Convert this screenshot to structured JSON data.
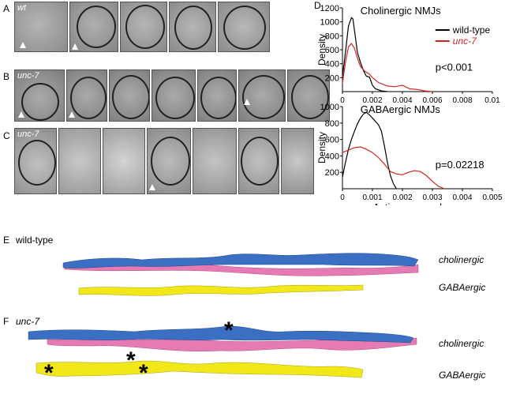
{
  "panels": {
    "A": {
      "letter": "A",
      "genotype": "wt"
    },
    "B": {
      "letter": "B",
      "genotype": "unc-7"
    },
    "C": {
      "letter": "C",
      "genotype": "unc-7"
    },
    "D": {
      "letter": "D"
    },
    "E": {
      "letter": "E",
      "genotype": "wild-type",
      "rows": [
        "cholinergic",
        "GABAergic"
      ]
    },
    "F": {
      "letter": "F",
      "genotype": "unc-7",
      "rows": [
        "cholinergic",
        "GABAergic"
      ],
      "asterisk": "*"
    }
  },
  "colors": {
    "wild_type": "#000000",
    "unc7": "#d0251f",
    "cholinergic_blue": "#3a6fc4",
    "cholinergic_pink": "#e67bb3",
    "gaba_yellow": "#f2e819"
  },
  "chart_data": [
    {
      "type": "line",
      "title": "Cholinergic NMJs",
      "ylabel": "Density",
      "xlabel": "",
      "xlim": [
        0,
        0.01
      ],
      "ylim": [
        0,
        1200
      ],
      "xticks": [
        "0",
        "0.002",
        "0.004",
        "0.006",
        "0.008",
        "0.01"
      ],
      "yticks": [
        "200",
        "400",
        "600",
        "800",
        "1000",
        "1200"
      ],
      "annotation": "p<0.001",
      "legend": [
        "wild-type",
        "unc-7"
      ],
      "series": [
        {
          "name": "wild-type",
          "x": [
            0,
            0.0002,
            0.0004,
            0.0006,
            0.0007,
            0.0008,
            0.001,
            0.0012,
            0.0014,
            0.0016,
            0.0018,
            0.002,
            0.0022,
            0.0026,
            0.003
          ],
          "y": [
            220,
            560,
            940,
            1060,
            1040,
            880,
            560,
            420,
            300,
            220,
            210,
            90,
            40,
            10,
            0
          ]
        },
        {
          "name": "unc-7",
          "x": [
            0,
            0.0002,
            0.0004,
            0.0006,
            0.0008,
            0.001,
            0.0012,
            0.0015,
            0.0018,
            0.002,
            0.0024,
            0.003,
            0.0035,
            0.004,
            0.0045,
            0.005,
            0.0055,
            0.006
          ],
          "y": [
            120,
            420,
            640,
            690,
            620,
            480,
            360,
            290,
            250,
            200,
            130,
            80,
            70,
            90,
            40,
            30,
            10,
            0
          ]
        }
      ]
    },
    {
      "type": "line",
      "title": "GABAergic NMJs",
      "ylabel": "Density",
      "xlabel": "Active zone volume",
      "xlim": [
        0,
        0.005
      ],
      "ylim": [
        0,
        1000
      ],
      "xticks": [
        "0",
        "0.001",
        "0.002",
        "0.003",
        "0.004",
        "0.005"
      ],
      "yticks": [
        "200",
        "400",
        "600",
        "800",
        "1000"
      ],
      "annotation": "p=0.02218",
      "series": [
        {
          "name": "wild-type",
          "x": [
            0,
            0.0001,
            0.0002,
            0.0003,
            0.0004,
            0.0005,
            0.0006,
            0.0007,
            0.0008,
            0.0009,
            0.001,
            0.0011,
            0.0012,
            0.0013,
            0.0014,
            0.0015,
            0.0016,
            0.0017,
            0.0018
          ],
          "y": [
            140,
            320,
            480,
            600,
            700,
            790,
            860,
            910,
            930,
            900,
            860,
            820,
            780,
            700,
            520,
            320,
            160,
            60,
            0
          ]
        },
        {
          "name": "unc-7",
          "x": [
            0,
            0.0002,
            0.0004,
            0.0006,
            0.0008,
            0.001,
            0.0012,
            0.0014,
            0.0016,
            0.0018,
            0.002,
            0.0022,
            0.0024,
            0.0026,
            0.0028,
            0.003,
            0.0032,
            0.0034
          ],
          "y": [
            440,
            470,
            500,
            510,
            480,
            440,
            380,
            300,
            210,
            180,
            170,
            200,
            220,
            210,
            160,
            90,
            30,
            0
          ]
        }
      ]
    }
  ]
}
